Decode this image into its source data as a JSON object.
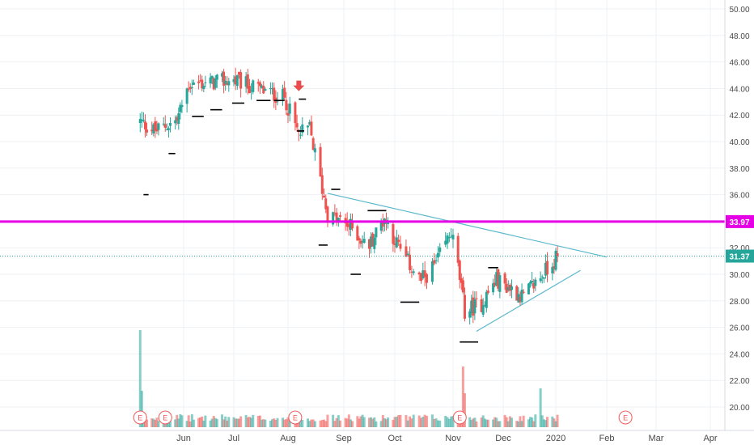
{
  "chart_data": {
    "type": "candlestick",
    "ylim": [
      18.4,
      50.8
    ],
    "grid": true,
    "y_ticks": [
      20,
      22,
      24,
      26,
      28,
      30,
      32,
      34,
      36,
      38,
      40,
      42,
      44,
      46,
      48,
      50
    ],
    "y_tick_labels": [
      "20.00",
      "22.00",
      "24.00",
      "26.00",
      "28.00",
      "30.00",
      "32.00",
      "34.00",
      "36.00",
      "38.00",
      "40.00",
      "42.00",
      "44.00",
      "46.00",
      "48.00",
      "50.00"
    ],
    "x_ticks": [
      {
        "label": "Jun",
        "date": "2019-06-01"
      },
      {
        "label": "Jul",
        "date": "2019-07-01"
      },
      {
        "label": "Aug",
        "date": "2019-08-01"
      },
      {
        "label": "Sep",
        "date": "2019-09-01"
      },
      {
        "label": "Oct",
        "date": "2019-10-01"
      },
      {
        "label": "Nov",
        "date": "2019-11-01"
      },
      {
        "label": "Dec",
        "date": "2019-12-01"
      },
      {
        "label": "2020",
        "date": "2020-01-01"
      },
      {
        "label": "Feb",
        "date": "2020-02-01"
      },
      {
        "label": "Mar",
        "date": "2020-03-01"
      },
      {
        "label": "Apr",
        "date": "2020-04-01"
      }
    ],
    "price_segments": [
      {
        "start": "2019-05-06",
        "end": "2019-05-15",
        "from": 41.5,
        "to": 40.8
      },
      {
        "start": "2019-05-15",
        "end": "2019-05-28",
        "from": 40.8,
        "to": 41.6
      },
      {
        "start": "2019-05-28",
        "end": "2019-06-04",
        "from": 41.6,
        "to": 44.3
      },
      {
        "start": "2019-06-04",
        "end": "2019-07-01",
        "from": 44.3,
        "to": 44.6
      },
      {
        "start": "2019-07-01",
        "end": "2019-07-30",
        "from": 44.6,
        "to": 43.3
      },
      {
        "start": "2019-07-30",
        "end": "2019-08-07",
        "from": 43.3,
        "to": 40.5
      },
      {
        "start": "2019-08-07",
        "end": "2019-08-13",
        "from": 40.5,
        "to": 41.0
      },
      {
        "start": "2019-08-13",
        "end": "2019-08-23",
        "from": 41.0,
        "to": 34.5
      },
      {
        "start": "2019-08-23",
        "end": "2019-09-06",
        "from": 34.5,
        "to": 33.5
      },
      {
        "start": "2019-09-06",
        "end": "2019-09-15",
        "from": 33.5,
        "to": 32.0
      },
      {
        "start": "2019-09-15",
        "end": "2019-09-25",
        "from": 32.0,
        "to": 34.3
      },
      {
        "start": "2019-09-25",
        "end": "2019-10-05",
        "from": 34.3,
        "to": 31.5
      },
      {
        "start": "2019-10-05",
        "end": "2019-10-15",
        "from": 31.5,
        "to": 29.5
      },
      {
        "start": "2019-10-15",
        "end": "2019-10-23",
        "from": 29.5,
        "to": 30.8
      },
      {
        "start": "2019-10-23",
        "end": "2019-10-31",
        "from": 30.8,
        "to": 33.2
      },
      {
        "start": "2019-10-31",
        "end": "2019-11-04",
        "from": 33.2,
        "to": 30.5
      },
      {
        "start": "2019-11-04",
        "end": "2019-11-08",
        "from": 30.5,
        "to": 27.2
      },
      {
        "start": "2019-11-08",
        "end": "2019-11-18",
        "from": 27.2,
        "to": 27.8
      },
      {
        "start": "2019-11-18",
        "end": "2019-11-27",
        "from": 27.8,
        "to": 29.6
      },
      {
        "start": "2019-11-27",
        "end": "2019-12-13",
        "from": 29.6,
        "to": 28.3
      },
      {
        "start": "2019-12-13",
        "end": "2020-01-02",
        "from": 28.3,
        "to": 31.37
      }
    ],
    "volume_spikes": [
      {
        "date": "2019-05-06",
        "volume": 12.0
      },
      {
        "date": "2019-05-07",
        "volume": 4.5
      },
      {
        "date": "2019-11-07",
        "volume": 7.5
      },
      {
        "date": "2019-11-08",
        "volume": 4.2
      },
      {
        "date": "2019-12-23",
        "volume": 4.8
      }
    ],
    "earnings_markers": [
      {
        "label": "E",
        "date": "2019-05-06"
      },
      {
        "label": "E",
        "date": "2019-05-21"
      },
      {
        "label": "E",
        "date": "2019-08-05"
      },
      {
        "label": "E",
        "date": "2019-11-05"
      },
      {
        "label": "E",
        "date": "2020-02-12"
      }
    ],
    "horizontal_lines": [
      {
        "value": 33.97,
        "label": "33.97",
        "color": "#e600e6",
        "style": "solid"
      },
      {
        "value": 31.37,
        "label": "31.37",
        "color": "#26a69a",
        "style": "dotted"
      }
    ],
    "trendlines": [
      {
        "x1": "2019-08-23",
        "y1": 36.1,
        "x2": "2020-02-01",
        "y2": 31.3,
        "color": "#5bb8cc"
      },
      {
        "x1": "2019-11-15",
        "y1": 25.7,
        "x2": "2020-01-16",
        "y2": 30.3,
        "color": "#5bb8cc"
      }
    ],
    "support_marks": [
      {
        "start": "2019-05-08",
        "end": "2019-05-11",
        "value": 36.0
      },
      {
        "start": "2019-05-23",
        "end": "2019-05-27",
        "value": 39.1
      },
      {
        "start": "2019-06-06",
        "end": "2019-06-13",
        "value": 41.9
      },
      {
        "start": "2019-06-17",
        "end": "2019-06-24",
        "value": 42.4
      },
      {
        "start": "2019-06-30",
        "end": "2019-07-07",
        "value": 42.9
      },
      {
        "start": "2019-07-14",
        "end": "2019-07-22",
        "value": 43.1
      },
      {
        "start": "2019-07-24",
        "end": "2019-07-30",
        "value": 43.1
      },
      {
        "start": "2019-08-07",
        "end": "2019-08-11",
        "value": 43.2
      },
      {
        "start": "2019-08-06",
        "end": "2019-08-10",
        "value": 40.8
      },
      {
        "start": "2019-08-18",
        "end": "2019-08-23",
        "value": 32.2
      },
      {
        "start": "2019-08-25",
        "end": "2019-08-30",
        "value": 36.4
      },
      {
        "start": "2019-09-15",
        "end": "2019-09-26",
        "value": 34.8
      },
      {
        "start": "2019-09-05",
        "end": "2019-09-11",
        "value": 30.0
      },
      {
        "start": "2019-10-04",
        "end": "2019-10-14",
        "value": 27.9
      },
      {
        "start": "2019-11-05",
        "end": "2019-11-16",
        "value": 24.9
      },
      {
        "start": "2019-11-22",
        "end": "2019-11-28",
        "value": 30.5
      }
    ],
    "annotation_arrow": {
      "date": "2019-08-07",
      "value": 43.8,
      "color": "#e84c4c",
      "direction": "down"
    },
    "colors": {
      "up": "#26a69a",
      "down": "#ef5350",
      "volume_up": "#26a69a",
      "volume_down": "#ef5350",
      "grid": "#eef1f5",
      "axis_text": "#4a4a4a",
      "earnings": "#f05a5a",
      "black_marks": "#000000"
    }
  }
}
